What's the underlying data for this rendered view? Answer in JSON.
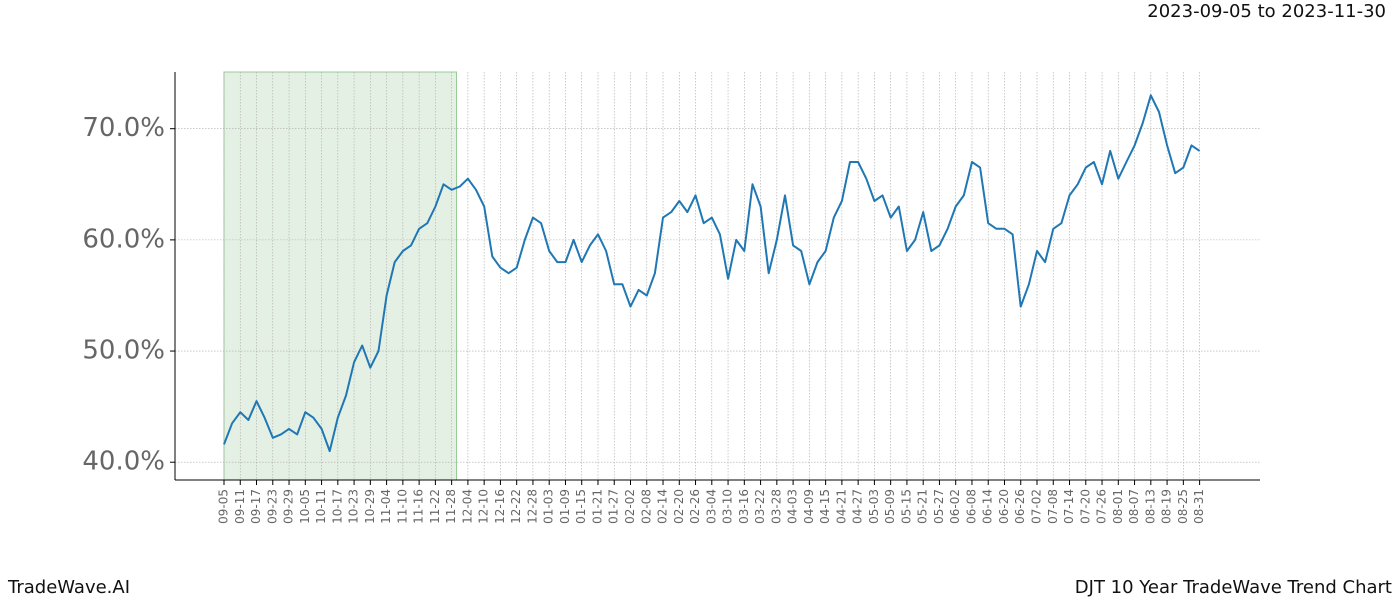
{
  "chart_data": {
    "type": "line",
    "subtitle": "2023-09-05 to 2023-11-30",
    "footer_left": "TradeWave.AI",
    "footer_right": "DJT 10 Year TradeWave Trend Chart",
    "categories": [
      "09-05",
      null,
      "09-11",
      null,
      "09-17",
      null,
      "09-23",
      null,
      "09-29",
      null,
      "10-05",
      null,
      "10-11",
      null,
      "10-17",
      null,
      "10-23",
      null,
      "10-29",
      null,
      "11-04",
      null,
      "11-10",
      null,
      "11-16",
      null,
      "11-22",
      null,
      "11-28",
      null,
      "12-04",
      null,
      "12-10",
      null,
      "12-16",
      null,
      "12-22",
      null,
      "12-28",
      null,
      "01-03",
      null,
      "01-09",
      null,
      "01-15",
      null,
      "01-21",
      null,
      "01-27",
      null,
      "02-02",
      null,
      "02-08",
      null,
      "02-14",
      null,
      "02-20",
      null,
      "02-26",
      null,
      "03-04",
      null,
      "03-10",
      null,
      "03-16",
      null,
      "03-22",
      null,
      "03-28",
      null,
      "04-03",
      null,
      "04-09",
      null,
      "04-15",
      null,
      "04-21",
      null,
      "04-27",
      null,
      "05-03",
      null,
      "05-09",
      null,
      "05-15",
      null,
      "05-21",
      null,
      "05-27",
      null,
      "06-02",
      null,
      "06-08",
      null,
      "06-14",
      null,
      "06-20",
      null,
      "06-26",
      null,
      "07-02",
      null,
      "07-08",
      null,
      "07-14",
      null,
      "07-20",
      null,
      "07-26",
      null,
      "08-01",
      null,
      "08-07",
      null,
      "08-13",
      null,
      "08-19",
      null,
      "08-25",
      null,
      "08-31"
    ],
    "series": [
      {
        "color": "#1f77b4",
        "values": [
          41.6,
          43.5,
          44.5,
          43.8,
          45.5,
          44,
          42.2,
          42.5,
          43,
          42.5,
          44.5,
          44,
          43,
          41,
          44,
          46,
          49,
          50.5,
          48.5,
          50,
          55,
          58,
          59,
          59.5,
          61,
          61.5,
          63,
          65,
          64.5,
          64.8,
          65.5,
          64.5,
          63,
          58.5,
          57.5,
          57,
          57.5,
          60,
          62,
          61.5,
          59,
          58,
          58,
          60,
          58,
          59.5,
          60.5,
          59,
          56,
          56,
          54,
          55.5,
          55,
          57,
          62,
          62.5,
          63.5,
          62.5,
          64,
          61.5,
          62,
          60.5,
          56.5,
          60,
          59,
          65,
          63,
          57,
          60,
          64,
          59.5,
          59,
          56,
          58,
          59,
          62,
          63.5,
          67,
          67,
          65.5,
          63.5,
          64,
          62,
          63,
          59,
          60,
          62.5,
          59,
          59.5,
          61,
          63,
          64,
          67,
          66.5,
          61.5,
          61,
          61,
          60.5,
          54,
          56,
          59,
          58,
          61,
          61.5,
          64,
          65,
          66.5,
          67,
          65,
          68,
          65.5,
          67,
          68.5,
          70.5,
          73,
          71.5,
          68.5,
          66,
          66.5,
          68.5,
          68
        ]
      }
    ],
    "shaded_range": [
      "09-05",
      "11-28"
    ],
    "shade_color": "#e5f0e5",
    "ylim": [
      38.4,
      75.1
    ],
    "yticks": [
      {
        "value": 40,
        "label": "40.0%"
      },
      {
        "value": 50,
        "label": "50.0%"
      },
      {
        "value": 60,
        "label": "60.0%"
      },
      {
        "value": 70,
        "label": "70.0%"
      }
    ],
    "grid": true
  }
}
